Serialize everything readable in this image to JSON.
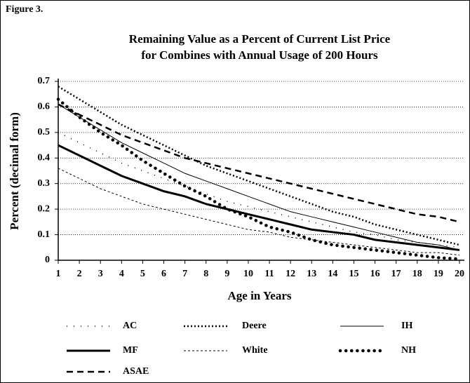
{
  "chart_data": {
    "type": "line",
    "figure_label": "Figure 3.",
    "title": [
      "Remaining Value as a Percent of Current List Price",
      "for Combines with Annual Usage of 200 Hours"
    ],
    "x_label": "Age in Years",
    "y_label": "Percent (decimal form)",
    "x": [
      1,
      2,
      3,
      4,
      5,
      6,
      7,
      8,
      9,
      10,
      11,
      12,
      13,
      14,
      15,
      16,
      17,
      18,
      19,
      20
    ],
    "xlim": [
      1,
      20
    ],
    "xticks": [
      1,
      2,
      3,
      4,
      5,
      6,
      7,
      8,
      9,
      10,
      11,
      12,
      13,
      14,
      15,
      16,
      17,
      18,
      19,
      20
    ],
    "ylim": [
      0,
      0.7
    ],
    "yticks": [
      0,
      0.1,
      0.2,
      0.3,
      0.4,
      0.5,
      0.6,
      0.7
    ],
    "grid": true,
    "legend": "bottom",
    "series": [
      {
        "name": "AC",
        "color": "#000000",
        "values": [
          0.5,
          0.46,
          0.42,
          0.38,
          0.35,
          0.32,
          0.29,
          0.26,
          0.23,
          0.21,
          0.19,
          0.17,
          0.15,
          0.13,
          0.11,
          0.1,
          0.08,
          0.07,
          0.06,
          0.05
        ]
      },
      {
        "name": "Deere",
        "color": "#000000",
        "values": [
          0.68,
          0.63,
          0.58,
          0.53,
          0.49,
          0.45,
          0.41,
          0.37,
          0.34,
          0.31,
          0.28,
          0.25,
          0.22,
          0.19,
          0.17,
          0.14,
          0.12,
          0.1,
          0.08,
          0.06
        ]
      },
      {
        "name": "IH",
        "color": "#000000",
        "values": [
          0.61,
          0.56,
          0.51,
          0.46,
          0.42,
          0.38,
          0.34,
          0.31,
          0.28,
          0.25,
          0.22,
          0.19,
          0.17,
          0.15,
          0.13,
          0.11,
          0.09,
          0.07,
          0.06,
          0.04
        ]
      },
      {
        "name": "MF",
        "color": "#000000",
        "values": [
          0.45,
          0.41,
          0.37,
          0.33,
          0.3,
          0.27,
          0.25,
          0.22,
          0.2,
          0.18,
          0.16,
          0.14,
          0.12,
          0.11,
          0.1,
          0.08,
          0.07,
          0.06,
          0.05,
          0.04
        ]
      },
      {
        "name": "White",
        "color": "#000000",
        "values": [
          0.36,
          0.32,
          0.28,
          0.25,
          0.22,
          0.2,
          0.18,
          0.16,
          0.14,
          0.12,
          0.11,
          0.09,
          0.08,
          0.07,
          0.06,
          0.05,
          0.04,
          0.03,
          0.03,
          0.02
        ]
      },
      {
        "name": "NH",
        "color": "#000000",
        "values": [
          0.63,
          0.56,
          0.5,
          0.45,
          0.39,
          0.34,
          0.29,
          0.25,
          0.2,
          0.17,
          0.13,
          0.11,
          0.08,
          0.06,
          0.05,
          0.04,
          0.03,
          0.02,
          0.01,
          0.005
        ]
      },
      {
        "name": "ASAE",
        "color": "#000000",
        "values": [
          0.61,
          0.57,
          0.53,
          0.49,
          0.46,
          0.43,
          0.4,
          0.38,
          0.36,
          0.34,
          0.32,
          0.3,
          0.28,
          0.26,
          0.24,
          0.22,
          0.2,
          0.18,
          0.17,
          0.15
        ]
      }
    ]
  }
}
